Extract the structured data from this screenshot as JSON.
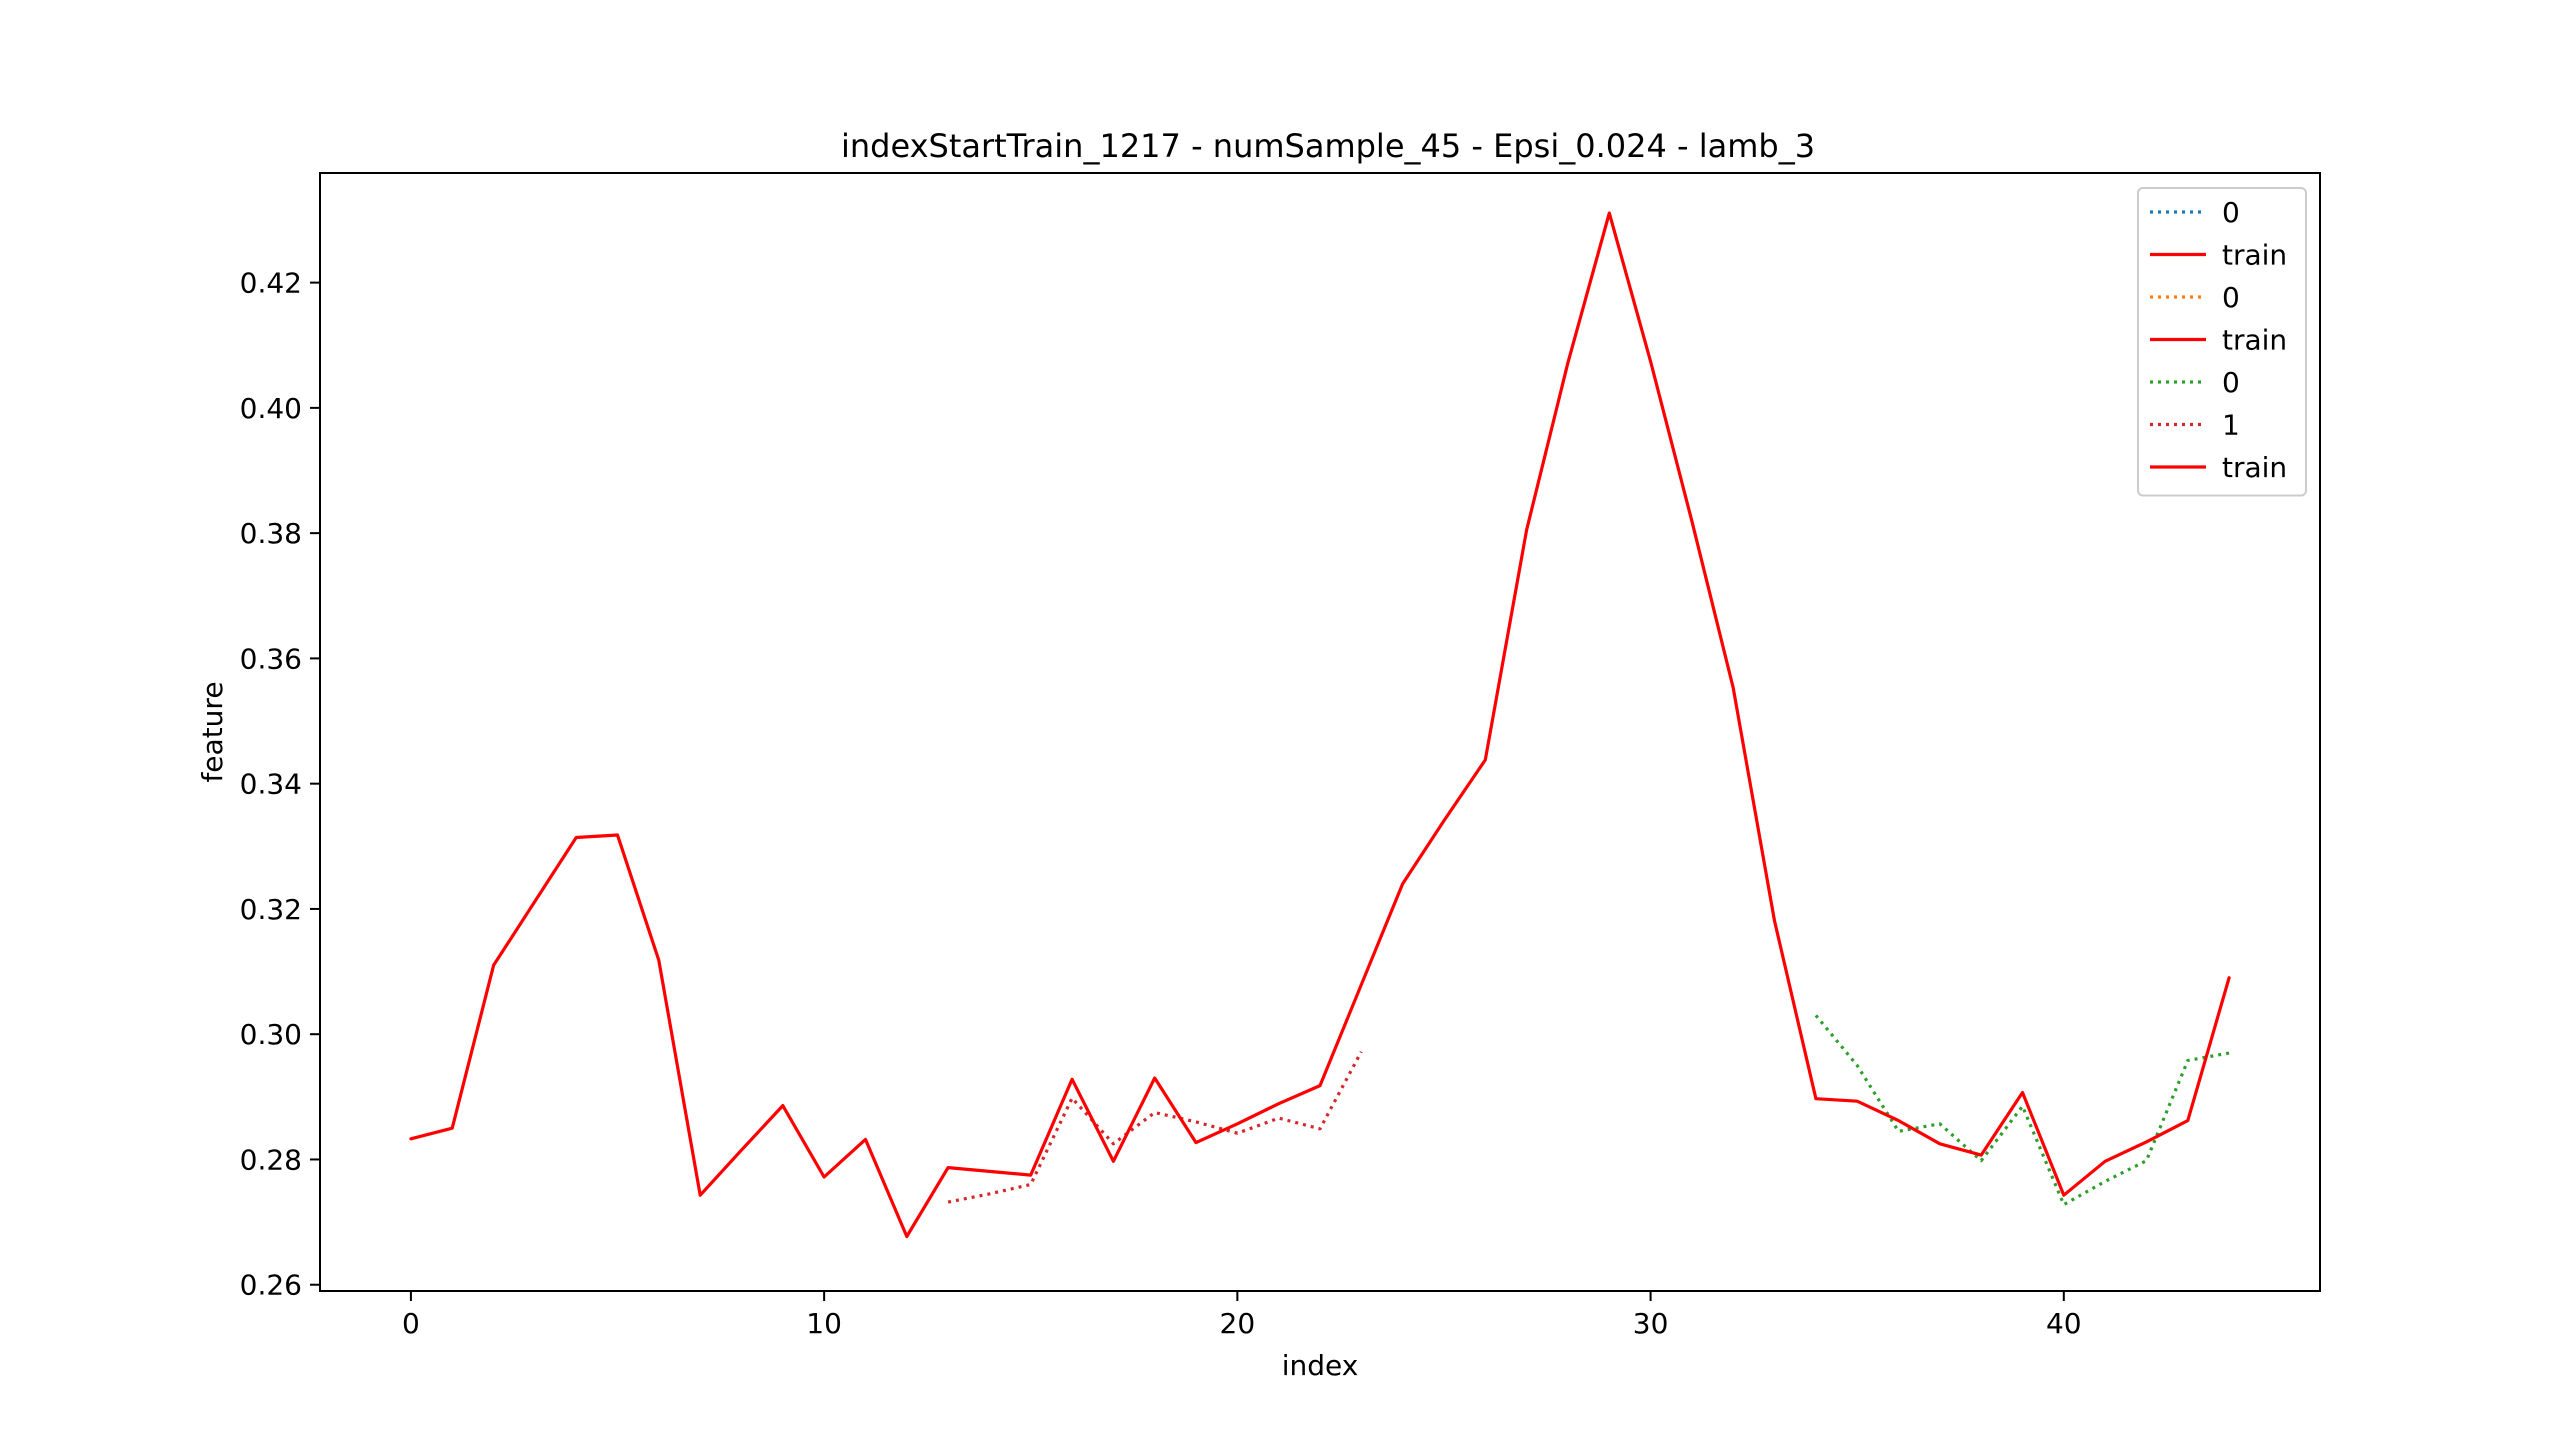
{
  "chart_data": {
    "type": "line",
    "title": "indexStartTrain_1217 - numSample_45 - Epsi_0.024 - lamb_3",
    "xlabel": "index",
    "ylabel": "feature",
    "xlim": [
      -2.2,
      46.2
    ],
    "ylim": [
      0.259,
      0.4375
    ],
    "x_ticks": [
      0,
      10,
      20,
      30,
      40
    ],
    "x_tick_labels": [
      "0",
      "10",
      "20",
      "30",
      "40"
    ],
    "y_ticks": [
      0.26,
      0.28,
      0.3,
      0.32,
      0.34,
      0.36,
      0.38,
      0.4,
      0.42
    ],
    "y_tick_labels": [
      "0.26",
      "0.28",
      "0.30",
      "0.32",
      "0.34",
      "0.36",
      "0.38",
      "0.40",
      "0.42"
    ],
    "grid": false,
    "legend_position": "top-right",
    "series": [
      {
        "name": "0",
        "color": "#1f77b4",
        "style": "dotted",
        "x": [],
        "y": []
      },
      {
        "name": "train",
        "color": "#ff0000",
        "style": "solid",
        "x": [
          0,
          1,
          2,
          3,
          4,
          5,
          6,
          7,
          8,
          9,
          10,
          11,
          12,
          13,
          14,
          15,
          16,
          17,
          18,
          19,
          20,
          21,
          22,
          23,
          24,
          25,
          26,
          27,
          28,
          29,
          30,
          31,
          32,
          33,
          34,
          35,
          36,
          37,
          38,
          39,
          40,
          41,
          42,
          43,
          44
        ],
        "y": [
          0.2833,
          0.285,
          0.311,
          0.3212,
          0.3314,
          0.3318,
          0.3118,
          0.2743,
          0.2815,
          0.2886,
          0.2772,
          0.2832,
          0.2677,
          0.2787,
          0.2781,
          0.2775,
          0.2928,
          0.2797,
          0.293,
          0.2827,
          0.2857,
          0.2889,
          0.2918,
          0.3079,
          0.324,
          0.3341,
          0.3438,
          0.3805,
          0.4072,
          0.4311,
          0.4074,
          0.3819,
          0.3553,
          0.3181,
          0.2897,
          0.2893,
          0.2862,
          0.2825,
          0.2807,
          0.2907,
          0.2743,
          0.2797,
          0.2828,
          0.2862,
          0.309
        ]
      },
      {
        "name": "0",
        "color": "#ff7f0e",
        "style": "dotted",
        "x": [],
        "y": []
      },
      {
        "name": "train",
        "color": "#ff0000",
        "style": "solid",
        "x": [],
        "y": []
      },
      {
        "name": "0",
        "color": "#2ca02c",
        "style": "dotted",
        "x": [
          34,
          35,
          36,
          37,
          38,
          39,
          40,
          41,
          42,
          43,
          44
        ],
        "y": [
          0.303,
          0.295,
          0.2845,
          0.2857,
          0.2798,
          0.2885,
          0.2728,
          0.2765,
          0.2798,
          0.2958,
          0.297
        ]
      },
      {
        "name": "1",
        "color": "#d62728",
        "style": "dotted",
        "x": [
          13,
          14,
          15,
          16,
          17,
          18,
          19,
          20,
          21,
          22,
          23
        ],
        "y": [
          0.2732,
          0.2745,
          0.276,
          0.2898,
          0.2825,
          0.2875,
          0.286,
          0.2842,
          0.2866,
          0.2849,
          0.2972
        ]
      },
      {
        "name": "train",
        "color": "#ff0000",
        "style": "solid",
        "x": [],
        "y": []
      }
    ]
  }
}
